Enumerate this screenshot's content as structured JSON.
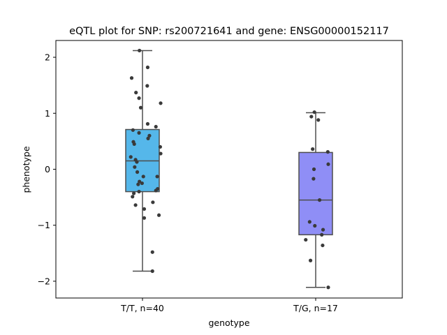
{
  "chart_data": {
    "type": "box",
    "title": "eQTL plot for SNP: rs200721641 and gene: ENSG00000152117",
    "xlabel": "genotype",
    "ylabel": "phenotype",
    "ylim": [
      -2.3,
      2.3
    ],
    "yticks": [
      -2,
      -1,
      0,
      1,
      2
    ],
    "ytick_labels": [
      "−2",
      "−1",
      "0",
      "1",
      "2"
    ],
    "grid": false,
    "groups": [
      {
        "label": "T/T, n=40",
        "color": "#55b7ea",
        "box": {
          "whisker_low": -1.82,
          "q1": -0.4,
          "median": 0.15,
          "q3": 0.71,
          "whisker_high": 2.12
        },
        "points": [
          [
            -0.07,
            2.12
          ],
          [
            0.12,
            1.82
          ],
          [
            -0.25,
            1.63
          ],
          [
            -0.15,
            1.37
          ],
          [
            -0.08,
            1.27
          ],
          [
            0.11,
            1.49
          ],
          [
            0.42,
            1.18
          ],
          [
            -0.04,
            1.1
          ],
          [
            0.12,
            0.81
          ],
          [
            0.31,
            0.76
          ],
          [
            -0.22,
            0.7
          ],
          [
            -0.08,
            0.65
          ],
          [
            0.16,
            0.6
          ],
          [
            0.13,
            0.55
          ],
          [
            -0.21,
            0.49
          ],
          [
            -0.19,
            0.45
          ],
          [
            0.41,
            0.4
          ],
          [
            0.42,
            0.28
          ],
          [
            -0.27,
            0.22
          ],
          [
            -0.16,
            0.17
          ],
          [
            -0.13,
            0.13
          ],
          [
            -0.18,
            0.04
          ],
          [
            -0.12,
            -0.05
          ],
          [
            0.02,
            -0.13
          ],
          [
            0.34,
            -0.13
          ],
          [
            -0.07,
            -0.22
          ],
          [
            -0.01,
            -0.25
          ],
          [
            -0.1,
            -0.27
          ],
          [
            0.35,
            -0.35
          ],
          [
            0.31,
            -0.38
          ],
          [
            -0.08,
            -0.4
          ],
          [
            -0.2,
            -0.43
          ],
          [
            -0.23,
            -0.49
          ],
          [
            0.24,
            -0.59
          ],
          [
            -0.16,
            -0.64
          ],
          [
            0.04,
            -0.71
          ],
          [
            0.38,
            -0.82
          ],
          [
            0.04,
            -0.87
          ],
          [
            0.23,
            -1.48
          ],
          [
            0.23,
            -1.82
          ]
        ]
      },
      {
        "label": "T/G, n=17",
        "color": "#8f8ef6",
        "box": {
          "whisker_low": -2.11,
          "q1": -1.17,
          "median": -0.55,
          "q3": 0.3,
          "whisker_high": 1.01
        },
        "points": [
          [
            -0.03,
            1.02
          ],
          [
            -0.1,
            0.94
          ],
          [
            0.06,
            0.88
          ],
          [
            -0.07,
            0.36
          ],
          [
            0.28,
            0.31
          ],
          [
            0.29,
            0.09
          ],
          [
            -0.04,
            0.0
          ],
          [
            -0.05,
            -0.17
          ],
          [
            0.09,
            -0.55
          ],
          [
            -0.14,
            -0.94
          ],
          [
            -0.02,
            -1.01
          ],
          [
            0.17,
            -1.08
          ],
          [
            0.14,
            -1.17
          ],
          [
            -0.23,
            -1.26
          ],
          [
            0.16,
            -1.36
          ],
          [
            -0.12,
            -1.63
          ],
          [
            0.29,
            -2.11
          ]
        ]
      }
    ]
  }
}
